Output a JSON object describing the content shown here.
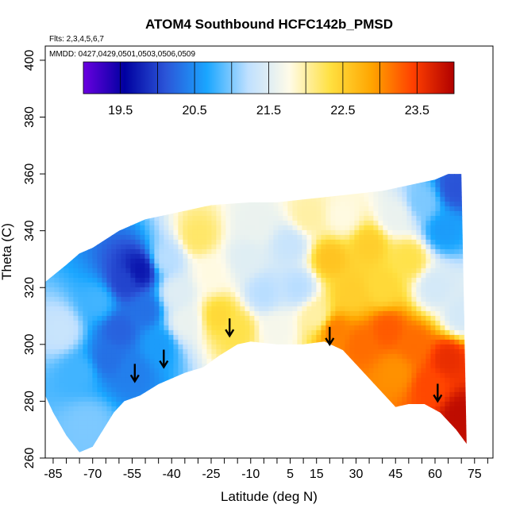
{
  "chart_data": {
    "type": "heatmap",
    "title": "ATOM4 Southbound HCFC142b_PMSD",
    "flights_note": "Flts: 2,3,4,5,6,7",
    "dates_note": "MMDD: 0427,0429,0501,0503,0506,0509",
    "xlabel": "Latitude (deg N)",
    "ylabel": "Theta (C)",
    "xlim": [
      -88,
      82
    ],
    "ylim": [
      260,
      405
    ],
    "x_ticks": [
      -85,
      -70,
      -55,
      -40,
      -25,
      -10,
      5,
      15,
      30,
      45,
      60,
      75
    ],
    "y_ticks": [
      260,
      280,
      300,
      320,
      340,
      360,
      380,
      400
    ],
    "colorbar": {
      "range": [
        19.0,
        24.0
      ],
      "ticks": [
        19.5,
        20.5,
        21.5,
        22.5,
        23.5
      ],
      "tick_labels": [
        "19.5",
        "20.5",
        "21.5",
        "22.5",
        "23.5"
      ],
      "colors": [
        "#6a00e0",
        "#0000a0",
        "#2b55d8",
        "#1aa6ff",
        "#bfe0ff",
        "#fffbe8",
        "#ffe040",
        "#ffa500",
        "#ff4000",
        "#b00000"
      ]
    },
    "domain_top": [
      [
        -88,
        322
      ],
      [
        -80,
        328
      ],
      [
        -75,
        332
      ],
      [
        -70,
        334
      ],
      [
        -60,
        340
      ],
      [
        -50,
        344
      ],
      [
        -40,
        346
      ],
      [
        -25,
        349
      ],
      [
        -10,
        350
      ],
      [
        0,
        350
      ],
      [
        10,
        351
      ],
      [
        20,
        352
      ],
      [
        30,
        353
      ],
      [
        40,
        354
      ],
      [
        50,
        356
      ],
      [
        60,
        358
      ],
      [
        65,
        360
      ],
      [
        70,
        360
      ]
    ],
    "domain_bottom": [
      [
        72,
        265
      ],
      [
        68,
        270
      ],
      [
        62,
        276
      ],
      [
        56,
        279
      ],
      [
        50,
        279
      ],
      [
        45,
        278
      ],
      [
        38,
        285
      ],
      [
        30,
        293
      ],
      [
        25,
        298
      ],
      [
        18,
        301
      ],
      [
        10,
        300
      ],
      [
        0,
        300
      ],
      [
        -10,
        301
      ],
      [
        -15,
        300
      ],
      [
        -22,
        296
      ],
      [
        -28,
        292
      ],
      [
        -35,
        290
      ],
      [
        -45,
        286
      ],
      [
        -52,
        282
      ],
      [
        -58,
        280
      ],
      [
        -62,
        276
      ],
      [
        -66,
        270
      ],
      [
        -70,
        264
      ],
      [
        -75,
        262
      ],
      [
        -80,
        268
      ],
      [
        -85,
        276
      ],
      [
        -88,
        282
      ]
    ],
    "field_points": [
      {
        "lat": -82,
        "theta": 305,
        "value": 21.3
      },
      {
        "lat": -75,
        "theta": 290,
        "value": 20.8
      },
      {
        "lat": -72,
        "theta": 272,
        "value": 21.0
      },
      {
        "lat": -68,
        "theta": 315,
        "value": 20.8
      },
      {
        "lat": -64,
        "theta": 295,
        "value": 20.3
      },
      {
        "lat": -60,
        "theta": 305,
        "value": 20.2
      },
      {
        "lat": -58,
        "theta": 322,
        "value": 20.0
      },
      {
        "lat": -55,
        "theta": 290,
        "value": 20.4
      },
      {
        "lat": -52,
        "theta": 326,
        "value": 19.7
      },
      {
        "lat": -50,
        "theta": 312,
        "value": 20.3
      },
      {
        "lat": -45,
        "theta": 300,
        "value": 20.6
      },
      {
        "lat": -42,
        "theta": 330,
        "value": 21.2
      },
      {
        "lat": -38,
        "theta": 318,
        "value": 21.5
      },
      {
        "lat": -35,
        "theta": 308,
        "value": 21.6
      },
      {
        "lat": -30,
        "theta": 338,
        "value": 22.2
      },
      {
        "lat": -25,
        "theta": 325,
        "value": 21.8
      },
      {
        "lat": -22,
        "theta": 310,
        "value": 22.4
      },
      {
        "lat": -15,
        "theta": 305,
        "value": 22.3
      },
      {
        "lat": -12,
        "theta": 330,
        "value": 21.5
      },
      {
        "lat": -8,
        "theta": 342,
        "value": 21.6
      },
      {
        "lat": -5,
        "theta": 318,
        "value": 21.2
      },
      {
        "lat": 0,
        "theta": 305,
        "value": 21.7
      },
      {
        "lat": 5,
        "theta": 335,
        "value": 21.3
      },
      {
        "lat": 8,
        "theta": 320,
        "value": 21.2
      },
      {
        "lat": 12,
        "theta": 345,
        "value": 22.0
      },
      {
        "lat": 15,
        "theta": 310,
        "value": 22.0
      },
      {
        "lat": 20,
        "theta": 330,
        "value": 22.6
      },
      {
        "lat": 22,
        "theta": 305,
        "value": 23.1
      },
      {
        "lat": 25,
        "theta": 345,
        "value": 21.8
      },
      {
        "lat": 28,
        "theta": 318,
        "value": 22.5
      },
      {
        "lat": 32,
        "theta": 300,
        "value": 23.2
      },
      {
        "lat": 35,
        "theta": 335,
        "value": 22.5
      },
      {
        "lat": 40,
        "theta": 320,
        "value": 22.4
      },
      {
        "lat": 42,
        "theta": 305,
        "value": 23.3
      },
      {
        "lat": 45,
        "theta": 290,
        "value": 23.0
      },
      {
        "lat": 45,
        "theta": 345,
        "value": 21.6
      },
      {
        "lat": 50,
        "theta": 330,
        "value": 22.3
      },
      {
        "lat": 52,
        "theta": 300,
        "value": 23.2
      },
      {
        "lat": 55,
        "theta": 350,
        "value": 21.0
      },
      {
        "lat": 58,
        "theta": 285,
        "value": 23.4
      },
      {
        "lat": 60,
        "theta": 320,
        "value": 21.4
      },
      {
        "lat": 63,
        "theta": 340,
        "value": 20.6
      },
      {
        "lat": 65,
        "theta": 295,
        "value": 23.6
      },
      {
        "lat": 68,
        "theta": 355,
        "value": 20.1
      },
      {
        "lat": 70,
        "theta": 310,
        "value": 21.4
      },
      {
        "lat": 70,
        "theta": 275,
        "value": 23.9
      }
    ],
    "tropopause_arrows": [
      {
        "lat": -54,
        "theta": 287
      },
      {
        "lat": -43,
        "theta": 292
      },
      {
        "lat": -18,
        "theta": 303
      },
      {
        "lat": 20,
        "theta": 300
      },
      {
        "lat": 61,
        "theta": 280
      }
    ]
  }
}
